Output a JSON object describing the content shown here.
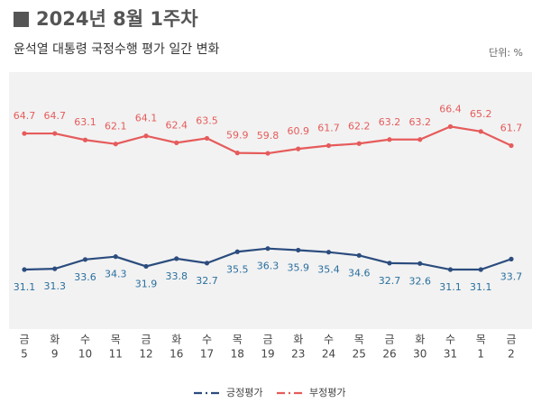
{
  "chart_data": {
    "type": "line",
    "title": "2024년 8월 1주차",
    "subtitle": "윤석열 대통령 국정수행 평가 일간 변화",
    "unit": "단위: %",
    "weekdays": [
      "금",
      "화",
      "수",
      "목",
      "금",
      "화",
      "수",
      "목",
      "금",
      "화",
      "수",
      "목",
      "금",
      "화",
      "수",
      "목",
      "금"
    ],
    "categories": [
      "5",
      "9",
      "10",
      "11",
      "12",
      "16",
      "17",
      "18",
      "19",
      "23",
      "24",
      "25",
      "26",
      "30",
      "31",
      "1",
      "2"
    ],
    "series": [
      {
        "name": "긍정평가",
        "color": "#2b4c7e",
        "label_color": "#2a6f9e",
        "values": [
          31.1,
          31.3,
          33.6,
          34.3,
          31.9,
          33.8,
          32.7,
          35.5,
          36.3,
          35.9,
          35.4,
          34.6,
          32.7,
          32.6,
          31.1,
          31.1,
          33.7
        ]
      },
      {
        "name": "부정평가",
        "color": "#e65b5b",
        "label_color": "#e65b5b",
        "values": [
          64.7,
          64.7,
          63.1,
          62.1,
          64.1,
          62.4,
          63.5,
          59.9,
          59.8,
          60.9,
          61.7,
          62.2,
          63.2,
          63.2,
          66.4,
          65.2,
          61.7
        ]
      }
    ]
  }
}
